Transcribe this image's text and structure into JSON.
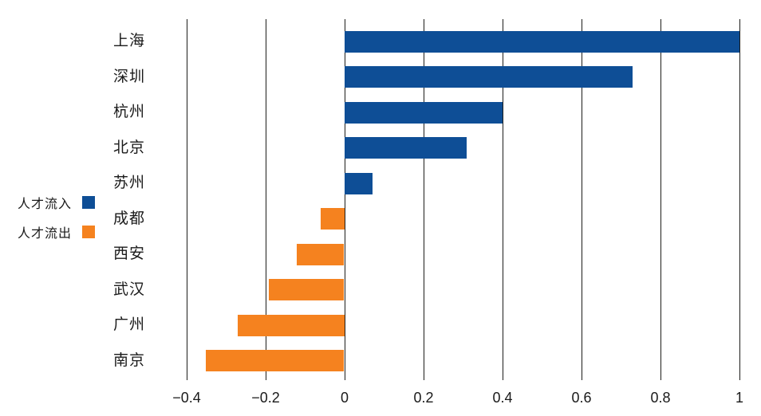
{
  "chart_data": {
    "type": "bar",
    "orientation": "horizontal",
    "title": "",
    "xlabel": "",
    "ylabel": "",
    "categories": [
      "上海",
      "深圳",
      "杭州",
      "北京",
      "苏州",
      "成都",
      "西安",
      "武汉",
      "广州",
      "南京"
    ],
    "values": [
      1.0,
      0.73,
      0.4,
      0.31,
      0.07,
      -0.06,
      -0.12,
      -0.19,
      -0.27,
      -0.35
    ],
    "xlim": [
      -0.4,
      1.0
    ],
    "grid": true,
    "legend_position": "left-middle",
    "legend": [
      {
        "label": "人才流入",
        "color": "#0E4E96"
      },
      {
        "label": "人才流出",
        "color": "#F5821F"
      }
    ],
    "x_ticks": [
      {
        "value": -0.4,
        "label": "−0.4"
      },
      {
        "value": -0.2,
        "label": "−0.2"
      },
      {
        "value": 0,
        "label": "0"
      },
      {
        "value": 0.2,
        "label": "0.2"
      },
      {
        "value": 0.4,
        "label": "0.4"
      },
      {
        "value": 0.6,
        "label": "0.6"
      },
      {
        "value": 0.8,
        "label": "0.8"
      },
      {
        "value": 1,
        "label": "1"
      }
    ],
    "colors": {
      "positive_bar": "#0E4E96",
      "negative_bar": "#F5821F",
      "gridline": "#1d1d1b",
      "text": "#1a1a1a"
    }
  }
}
